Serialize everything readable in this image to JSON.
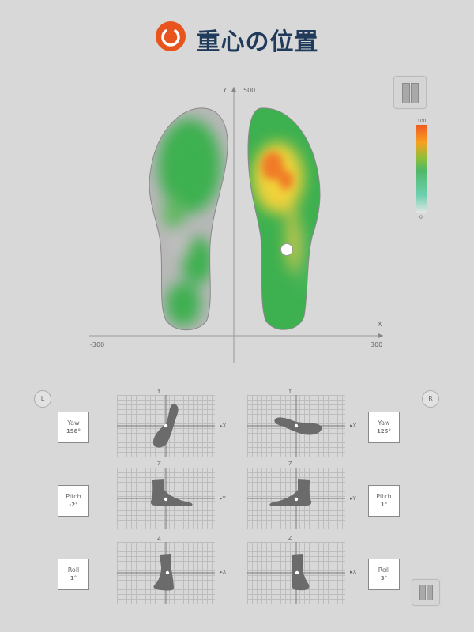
{
  "header": {
    "title": "重心の位置",
    "logo_icon": "refresh-circle-icon",
    "logo_color": "#e8541e"
  },
  "heatmap": {
    "y_axis_label": "Y",
    "y_axis_max": "500",
    "x_axis_label": "X",
    "x_axis_min": "-300",
    "x_axis_max": "300",
    "scale_max": "100",
    "scale_min": "0",
    "colors": {
      "high": "#f05a22",
      "mid": "#f8a020",
      "low": "#4fb86a",
      "zero": "#e6e6e6"
    }
  },
  "left": {
    "badge": "L",
    "yaw": {
      "label": "Yaw",
      "value": "158°",
      "axes": [
        "Y",
        "X"
      ]
    },
    "pitch": {
      "label": "Pitch",
      "value": "-2°",
      "axes": [
        "Z",
        "Y"
      ]
    },
    "roll": {
      "label": "Roll",
      "value": "1°",
      "axes": [
        "Z",
        "X"
      ]
    }
  },
  "right": {
    "badge": "R",
    "yaw": {
      "label": "Yaw",
      "value": "125°",
      "axes": [
        "Y",
        "X"
      ]
    },
    "pitch": {
      "label": "Pitch",
      "value": "1°",
      "axes": [
        "Z",
        "Y"
      ]
    },
    "roll": {
      "label": "Roll",
      "value": "3°",
      "axes": [
        "Z",
        "X"
      ]
    }
  }
}
